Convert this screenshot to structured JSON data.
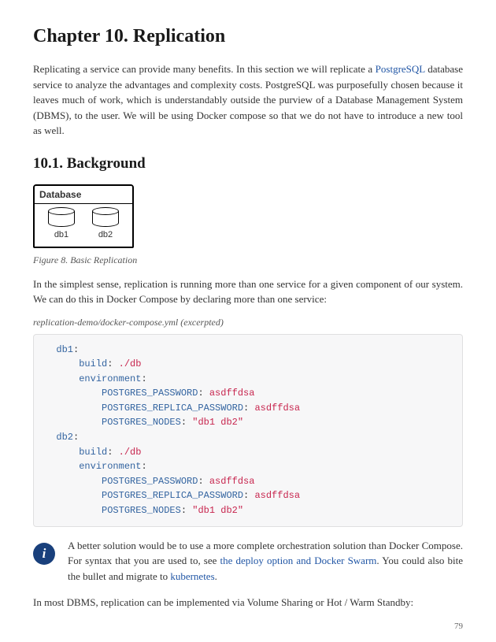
{
  "chapter_title": "Chapter 10. Replication",
  "intro_pre": "Replicating a service can provide many benefits. In this section we will replicate a ",
  "link_postgres": "PostgreSQL",
  "intro_post": " database service to analyze the advantages and complexity costs. PostgreSQL was purposefully chosen because it leaves much of work, which is understandably outside the purview of a Database Management System (DBMS), to the user. We will be using Docker compose so that we do not have to introduce a new tool as well.",
  "section_title": "10.1. Background",
  "diagram": {
    "box_label": "Database",
    "db1_label": "db1",
    "db2_label": "db2"
  },
  "figure_caption": "Figure 8. Basic Replication",
  "para2": "In the simplest sense, replication is running more than one service for a given component of our system. We can do this in Docker Compose by declaring more than one service:",
  "code_caption": "replication-demo/docker-compose.yml (excerpted)",
  "code": {
    "k_db1": "db1",
    "k_db2": "db2",
    "k_build": "build",
    "v_build": "./db",
    "k_env": "environment",
    "k_pg_pass": "POSTGRES_PASSWORD",
    "v_pass": "asdffdsa",
    "k_pg_rep": "POSTGRES_REPLICA_PASSWORD",
    "k_pg_nodes": "POSTGRES_NODES",
    "v_nodes": "\"db1 db2\""
  },
  "info_pre": "A better solution would be to use a more complete orchestration solution than Docker Compose. For syntax that you are used to, see ",
  "info_link1": "the deploy option and Docker Swarm",
  "info_mid": ". You could also bite the bullet and migrate to ",
  "info_link2": "kubernetes",
  "info_post": ".",
  "para3": "In most DBMS, replication can be implemented via Volume Sharing or Hot / Warm Standby:",
  "page_number": "79"
}
